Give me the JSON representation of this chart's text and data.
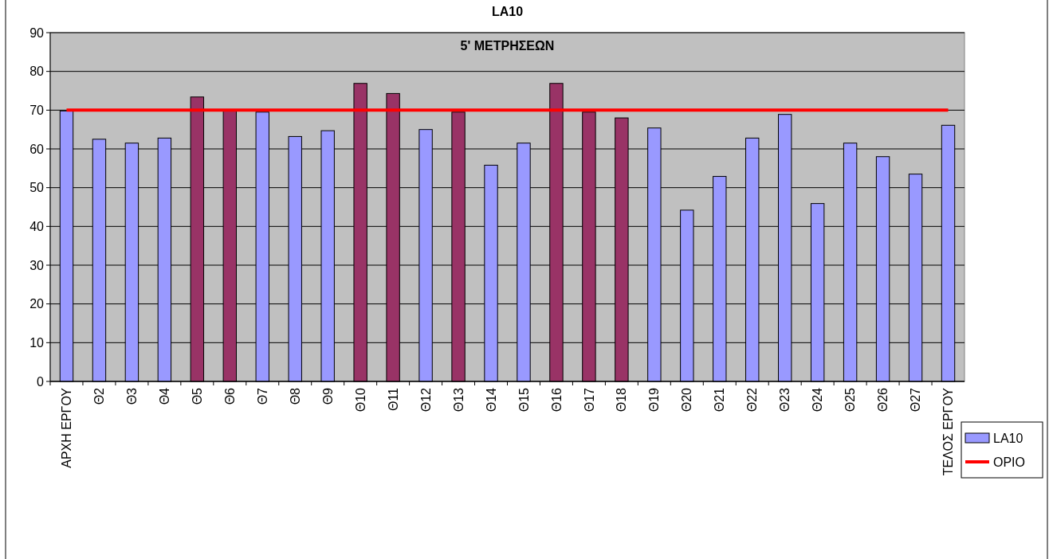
{
  "chart_data": {
    "type": "bar",
    "title": "LA10",
    "subtitle": "5' ΜΕΤΡΗΣΕΩΝ",
    "categories": [
      "ΑΡΧΗ ΕΡΓΟΥ",
      "Θ2",
      "Θ3",
      "Θ4",
      "Θ5",
      "Θ6",
      "Θ7",
      "Θ8",
      "Θ9",
      "Θ10",
      "Θ11",
      "Θ12",
      "Θ13",
      "Θ14",
      "Θ15",
      "Θ16",
      "Θ17",
      "Θ18",
      "Θ19",
      "Θ20",
      "Θ21",
      "Θ22",
      "Θ23",
      "Θ24",
      "Θ25",
      "Θ26",
      "Θ27",
      "ΤΕΛΟΣ ΕΡΓΟΥ"
    ],
    "series": [
      {
        "name": "LA10",
        "color": "#9999ff",
        "colors": [
          "#9999ff",
          "#9999ff",
          "#9999ff",
          "#9999ff",
          "#993366",
          "#993366",
          "#9999ff",
          "#9999ff",
          "#9999ff",
          "#993366",
          "#993366",
          "#9999ff",
          "#993366",
          "#9999ff",
          "#9999ff",
          "#993366",
          "#993366",
          "#993366",
          "#9999ff",
          "#9999ff",
          "#9999ff",
          "#9999ff",
          "#9999ff",
          "#9999ff",
          "#9999ff",
          "#9999ff",
          "#9999ff",
          "#9999ff"
        ],
        "values": [
          69.8,
          62.5,
          61.5,
          62.8,
          73.4,
          70,
          69.5,
          63.2,
          64.7,
          76.9,
          74.3,
          65,
          69.5,
          55.8,
          61.5,
          76.9,
          69.5,
          68,
          65.4,
          44.2,
          52.9,
          62.8,
          68.9,
          45.9,
          61.5,
          58,
          53.5,
          66.1
        ]
      },
      {
        "name": "ΟΡΙΟ",
        "type": "line",
        "color": "#ff0000",
        "values": [
          70,
          70,
          70,
          70,
          70,
          70,
          70,
          70,
          70,
          70,
          70,
          70,
          70,
          70,
          70,
          70,
          70,
          70,
          70,
          70,
          70,
          70,
          70,
          70,
          70,
          70,
          70,
          70
        ]
      }
    ],
    "ylim": [
      0,
      90
    ],
    "yticks": [
      0,
      10,
      20,
      30,
      40,
      50,
      60,
      70,
      80,
      90
    ],
    "grid": "y",
    "legend": "bottom right",
    "marker": "none",
    "line_style": "solid"
  }
}
